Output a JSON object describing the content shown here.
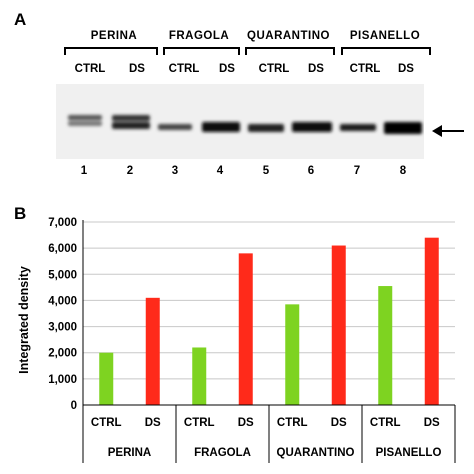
{
  "panel_a": {
    "letter": "A",
    "varieties": [
      "PERINA",
      "FRAGOLA",
      "QUARANTINO",
      "PISANELLO"
    ],
    "conditions": [
      "CTRL",
      "DS",
      "CTRL",
      "DS",
      "CTRL",
      "DS",
      "CTRL",
      "DS"
    ],
    "lanes": [
      "1",
      "2",
      "3",
      "4",
      "5",
      "6",
      "7",
      "8"
    ],
    "arrow_icon": "arrow-left-icon"
  },
  "panel_b": {
    "letter": "B"
  },
  "chart_data": {
    "type": "bar",
    "ylabel": "Integrated density",
    "ylim": [
      0,
      7000
    ],
    "yticks": [
      "0",
      "1,000",
      "2,000",
      "3,000",
      "4,000",
      "5,000",
      "6,000",
      "7,000"
    ],
    "groups": [
      "PERINA",
      "FRAGOLA",
      "QUARANTINO",
      "PISANELLO"
    ],
    "categories": [
      "CTRL",
      "DS",
      "CTRL",
      "DS",
      "CTRL",
      "DS",
      "CTRL",
      "DS"
    ],
    "values": [
      2000,
      4100,
      2200,
      5800,
      3850,
      6100,
      4550,
      6400
    ],
    "colors": {
      "CTRL": "#7ed321",
      "DS": "#ff2a1a"
    },
    "grid": true
  }
}
